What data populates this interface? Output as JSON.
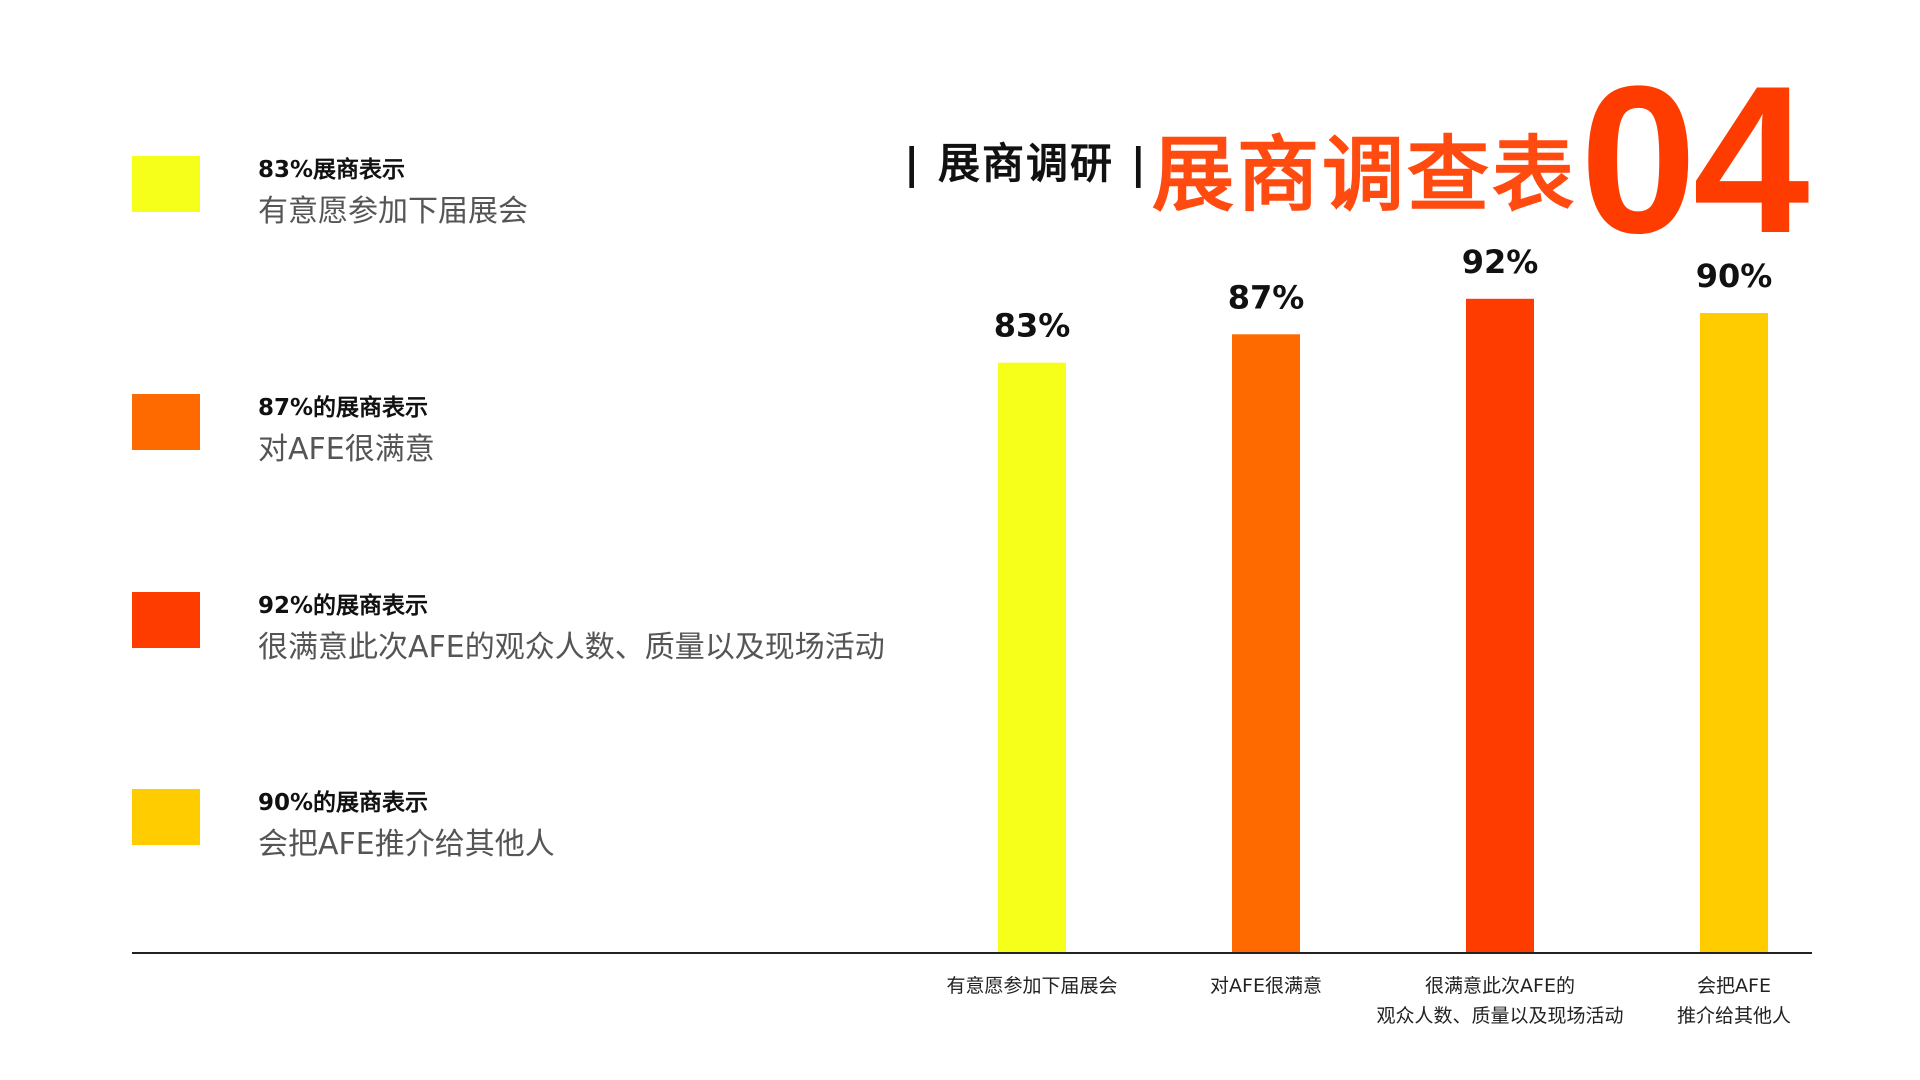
{
  "header": {
    "subtitle": "| 展商调研 |",
    "title": "展商调查表",
    "number": "04"
  },
  "legend": [
    {
      "head": "83%展商表示",
      "desc": "有意愿参加下届展会",
      "color": "#f5ff1a"
    },
    {
      "head": "87%的展商表示",
      "desc": "对AFE很满意",
      "color": "#ff6a00"
    },
    {
      "head": "92%的展商表示",
      "desc": "很满意此次AFE的观众人数、质量以及现场活动",
      "color": "#ff3c00"
    },
    {
      "head": "90%的展商表示",
      "desc": "会把AFE推介给其他人",
      "color": "#ffcc00"
    }
  ],
  "chart_data": {
    "type": "bar",
    "categories": [
      [
        "有意愿参加下届展会"
      ],
      [
        "对AFE很满意"
      ],
      [
        "很满意此次AFE的",
        "观众人数、质量以及现场活动"
      ],
      [
        "会把AFE",
        "推介给其他人"
      ]
    ],
    "values": [
      83,
      87,
      92,
      90
    ],
    "value_labels": [
      "83%",
      "87%",
      "92%",
      "90%"
    ],
    "colors": [
      "#f5ff1a",
      "#ff6a00",
      "#ff3c00",
      "#ffcc00"
    ],
    "ylim": [
      0,
      100
    ],
    "grid": false,
    "title": "",
    "xlabel": "",
    "ylabel": ""
  }
}
